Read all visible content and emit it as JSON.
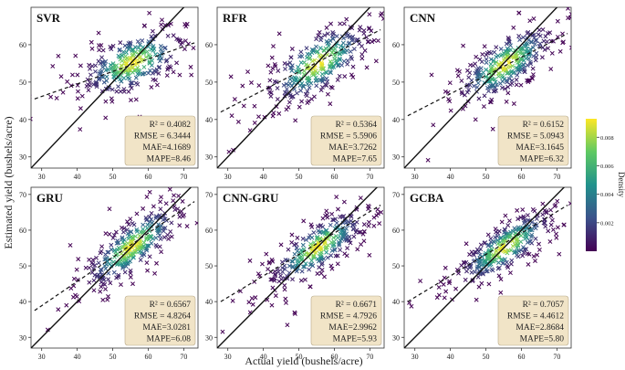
{
  "figure": {
    "xlabel": "Actual yield (bushels/acre)",
    "ylabel": "Estimated yield (bushels/acre)",
    "colorbar": {
      "label": "Density",
      "ticks": [
        "0.008",
        "0.006",
        "0.004",
        "0.002"
      ],
      "tick_values": [
        0.008,
        0.006,
        0.004,
        0.002
      ],
      "range": [
        0.0,
        0.0093
      ],
      "colors": [
        "#440154",
        "#3b528b",
        "#21918c",
        "#5ec962",
        "#fde725"
      ]
    }
  },
  "chart_data": [
    {
      "type": "scatter",
      "title": "SVR",
      "xlim": [
        27,
        74
      ],
      "ylim": [
        27,
        70
      ],
      "xticks": [
        30,
        40,
        50,
        60,
        70
      ],
      "yticks": [
        30,
        40,
        50,
        60
      ],
      "reference_line": "y = x",
      "fit_line": {
        "x": [
          28,
          73
        ],
        "y": [
          45.5,
          60.5
        ]
      },
      "metrics": [
        "R² = 0.4082",
        "RMSE = 6.3444",
        "MAE=4.1689",
        "MAPE=8.46"
      ],
      "point_cloud": {
        "center_x": 55.5,
        "center_y": 55.2,
        "spread_x": 7.5,
        "spread_y": 4.0,
        "slope": 0.33,
        "count": 320
      }
    },
    {
      "type": "scatter",
      "title": "RFR",
      "xlim": [
        27,
        74
      ],
      "ylim": [
        27,
        70
      ],
      "xticks": [
        30,
        40,
        50,
        60,
        70
      ],
      "yticks": [
        30,
        40,
        50,
        60
      ],
      "reference_line": "y = x",
      "fit_line": {
        "x": [
          28,
          73
        ],
        "y": [
          42,
          64
        ]
      },
      "metrics": [
        "R² = 0.5364",
        "RMSE = 5.5906",
        "MAE=3.7262",
        "MAPE=7.65"
      ],
      "point_cloud": {
        "center_x": 55.5,
        "center_y": 55.0,
        "spread_x": 7.5,
        "spread_y": 4.3,
        "slope": 0.5,
        "count": 320
      }
    },
    {
      "type": "scatter",
      "title": "CNN",
      "xlim": [
        27,
        74
      ],
      "ylim": [
        27,
        70
      ],
      "xticks": [
        30,
        40,
        50,
        60,
        70
      ],
      "yticks": [
        30,
        40,
        50,
        60
      ],
      "reference_line": "y = x",
      "fit_line": {
        "x": [
          28,
          73
        ],
        "y": [
          41,
          63
        ]
      },
      "metrics": [
        "R² = 0.6152",
        "RMSE = 5.0943",
        "MAE=3.1645",
        "MAPE=6.32"
      ],
      "point_cloud": {
        "center_x": 55.5,
        "center_y": 54.8,
        "spread_x": 7.0,
        "spread_y": 3.8,
        "slope": 0.55,
        "count": 320
      }
    },
    {
      "type": "scatter",
      "title": "GRU",
      "xlim": [
        27,
        74
      ],
      "ylim": [
        27,
        72
      ],
      "xticks": [
        30,
        40,
        50,
        60,
        70
      ],
      "yticks": [
        30,
        40,
        50,
        60,
        70
      ],
      "reference_line": "y = x",
      "fit_line": {
        "x": [
          28,
          73
        ],
        "y": [
          37.5,
          68
        ]
      },
      "metrics": [
        "R² = 0.6567",
        "RMSE = 4.8264",
        "MAE=3.0281",
        "MAPE=6.08"
      ],
      "point_cloud": {
        "center_x": 55.5,
        "center_y": 55.5,
        "spread_x": 7.0,
        "spread_y": 3.8,
        "slope": 0.68,
        "count": 320
      }
    },
    {
      "type": "scatter",
      "title": "CNN-GRU",
      "xlim": [
        27,
        74
      ],
      "ylim": [
        27,
        72
      ],
      "xticks": [
        30,
        40,
        50,
        60,
        70
      ],
      "yticks": [
        30,
        40,
        50,
        60,
        70
      ],
      "reference_line": "y = x",
      "fit_line": {
        "x": [
          28,
          73
        ],
        "y": [
          40,
          67
        ]
      },
      "metrics": [
        "R² = 0.6671",
        "RMSE = 4.7926",
        "MAE=2.9962",
        "MAPE=5.93"
      ],
      "point_cloud": {
        "center_x": 55.5,
        "center_y": 55.3,
        "spread_x": 7.0,
        "spread_y": 3.6,
        "slope": 0.6,
        "count": 320
      }
    },
    {
      "type": "scatter",
      "title": "GCBA",
      "xlim": [
        27,
        74
      ],
      "ylim": [
        27,
        72
      ],
      "xticks": [
        30,
        40,
        50,
        60,
        70
      ],
      "yticks": [
        30,
        40,
        50,
        60,
        70
      ],
      "reference_line": "y = x",
      "fit_line": {
        "x": [
          28,
          73
        ],
        "y": [
          40,
          67
        ]
      },
      "metrics": [
        "R² = 0.7057",
        "RMSE = 4.4612",
        "MAE=2.8684",
        "MAPE=5.80"
      ],
      "point_cloud": {
        "center_x": 55.5,
        "center_y": 55.3,
        "spread_x": 7.0,
        "spread_y": 3.4,
        "slope": 0.6,
        "count": 320
      }
    }
  ]
}
